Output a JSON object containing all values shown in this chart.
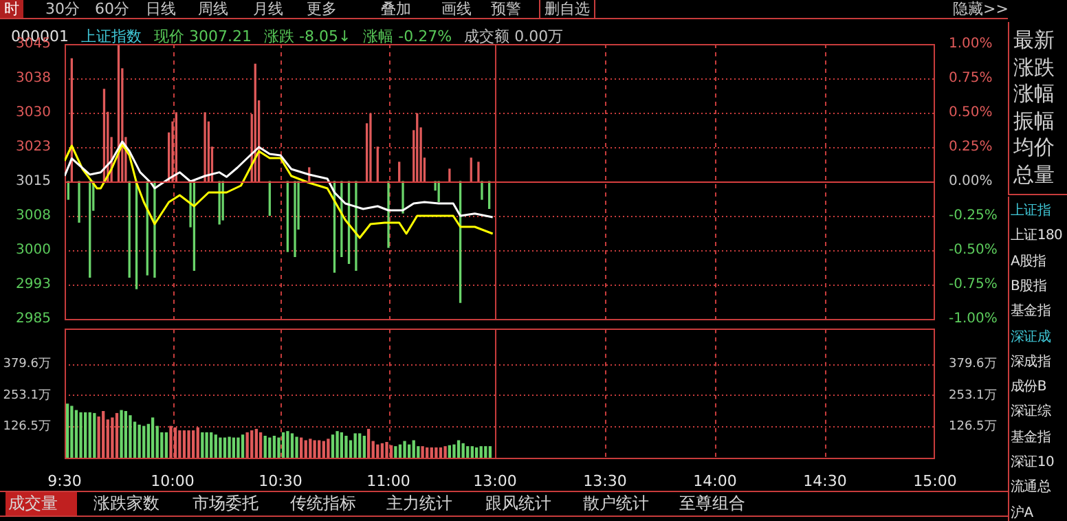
{
  "chart_data": [
    {
      "type": "line",
      "annotations": [
        "000001",
        "上证指数",
        "现价 3007.21",
        "涨跌 -8.05↓",
        "涨幅 -0.27%",
        "成交额 0.00万"
      ],
      "xlim": [
        9.5,
        11.5
      ],
      "xticks": [
        {
          "value": 9.5,
          "label": null
        },
        {
          "value": 10,
          "label": null
        },
        {
          "value": 10.5,
          "label": null
        },
        {
          "value": 11,
          "label": null
        }
      ],
      "ylim": [
        2985,
        3045
      ],
      "yticks": [
        2985,
        {
          "value": 2992.5,
          "label": "2993"
        },
        3000,
        {
          "value": 3007.5,
          "label": "3008"
        },
        3015,
        {
          "value": 3022.5,
          "label": "3023"
        },
        3030,
        {
          "value": 3037.5,
          "label": "3038"
        },
        3045
      ],
      "grid": true,
      "tick_labels": "y",
      "marker": "none",
      "ref_lines": [
        {
          "axis": "y",
          "value": 3015,
          "color": "#d84040"
        }
      ],
      "series": [
        {
          "type": "bar",
          "color": "#e05a5a",
          "x": [
            9.533,
            9.683,
            9.7,
            9.717,
            9.75,
            9.767,
            9.783,
            9.983,
            10,
            10.017,
            10.15,
            10.167,
            10.183,
            10.367,
            10.383,
            10.4,
            10.633,
            10.9,
            10.917,
            10.95,
            11.05,
            11.117,
            11.133,
            11.15,
            11.167,
            11.283,
            11.383,
            11.417
          ],
          "base": [
            3015,
            3015,
            3015,
            3015,
            3015,
            3015,
            3015,
            3015,
            3015,
            3015,
            3015,
            3015,
            3015,
            3015,
            3015,
            3015,
            3015,
            3015,
            3015,
            3015,
            3015,
            3015,
            3015,
            3015,
            3015,
            3015,
            3015,
            3015
          ],
          "values": [
            26.8,
            20.1,
            15.1,
            9.6,
            29.6,
            24.6,
            9.6,
            10.6,
            13,
            15,
            15,
            13,
            7.5,
            14.6,
            25.6,
            17.6,
            3,
            12.6,
            14.8,
            7.5,
            4.2,
            11.1,
            14.8,
            11.7,
            5.1,
            2.7,
            5.1,
            4.2
          ]
        },
        {
          "type": "bar",
          "color": "#6ad46a",
          "x": [
            9.517,
            9.567,
            9.617,
            9.633,
            9.8,
            9.833,
            9.883,
            9.917,
            10.083,
            10.1,
            10.217,
            10.233,
            10.45,
            10.533,
            10.567,
            10.583,
            10.75,
            10.783,
            10.817,
            10.85,
            11,
            11.067,
            11.217,
            11.233,
            11.333,
            11.433,
            11.467
          ],
          "base": [
            3015,
            3015,
            3015,
            3015,
            3015,
            3015,
            3015,
            3015,
            3015,
            3015,
            3015,
            3015,
            3015,
            3015,
            3015,
            3015,
            3015,
            3015,
            3015,
            3015,
            3015,
            3015,
            3015,
            3015,
            3015,
            3015,
            3015
          ],
          "values": [
            -3.9,
            -8.9,
            -20.9,
            -6.3,
            -20.9,
            -23.4,
            -20.4,
            -20.9,
            -9.9,
            -19.4,
            -9.3,
            -8.4,
            -7.4,
            -15.3,
            -16.4,
            -10.4,
            -19.8,
            -16.4,
            -17.9,
            -19.4,
            -14.4,
            -6.9,
            -1.9,
            -4.4,
            -26.4,
            -3.9,
            -5.9
          ]
        },
        {
          "color": "#ffffff",
          "x": [
            9.5,
            9.533,
            9.567,
            9.617,
            9.667,
            9.717,
            9.767,
            9.8,
            9.85,
            9.9,
            9.917,
            9.983,
            10.033,
            10.083,
            10.15,
            10.217,
            10.25,
            10.3,
            10.333,
            10.4,
            10.45,
            10.5,
            10.55,
            10.633,
            10.717,
            10.75,
            10.8,
            10.883,
            10.95,
            11,
            11.067,
            11.117,
            11.167,
            11.233,
            11.3,
            11.333,
            11.4,
            11.483
          ],
          "values": [
            3016.2,
            3020,
            3018.6,
            3016.5,
            3017,
            3019.5,
            3023.7,
            3021.6,
            3017,
            3014.7,
            3013.5,
            3015.6,
            3017,
            3015,
            3016.2,
            3017,
            3016,
            3018,
            3019.5,
            3022.5,
            3021,
            3020.7,
            3017.7,
            3016.5,
            3015.6,
            3012.6,
            3010.2,
            3009,
            3009.6,
            3008.7,
            3008.7,
            3010.2,
            3010.5,
            3010.2,
            3010.2,
            3007.5,
            3008,
            3007.2
          ]
        },
        {
          "color": "#ffff00",
          "x": [
            9.5,
            9.533,
            9.583,
            9.65,
            9.667,
            9.717,
            9.767,
            9.8,
            9.833,
            9.867,
            9.917,
            9.983,
            10.033,
            10.1,
            10.167,
            10.25,
            10.317,
            10.4,
            10.45,
            10.5,
            10.55,
            10.633,
            10.717,
            10.8,
            10.867,
            10.917,
            10.983,
            11.05,
            11.083,
            11.133,
            11.233,
            11.3,
            11.333,
            11.4,
            11.483
          ],
          "values": [
            3019.5,
            3022.8,
            3017.7,
            3013.5,
            3013.5,
            3017.7,
            3023.1,
            3020.7,
            3014.7,
            3010.5,
            3005.7,
            3010.5,
            3012,
            3009.6,
            3012.6,
            3012.6,
            3014.1,
            3021.6,
            3020.1,
            3020.1,
            3016.2,
            3014.7,
            3013.5,
            3006.6,
            3002.7,
            3005.7,
            3006,
            3006,
            3003.6,
            3007.5,
            3007.5,
            3007.5,
            3005.1,
            3005.1,
            3003.6
          ]
        }
      ]
    },
    {
      "type": "line",
      "xlim": [
        13,
        15
      ],
      "xticks": [
        {
          "value": 13,
          "label": null
        },
        {
          "value": 13.5,
          "label": null
        },
        {
          "value": 14,
          "label": null
        },
        {
          "value": 14.5,
          "label": null
        },
        {
          "value": 15,
          "label": null
        }
      ],
      "y2lim": [
        -1,
        1
      ],
      "y2ticks": [
        {
          "value": -1,
          "label": "-1.00%"
        },
        {
          "value": -0.75,
          "label": "-0.75%"
        },
        {
          "value": -0.5,
          "label": "-0.50%"
        },
        {
          "value": -0.25,
          "label": "-0.25%"
        },
        {
          "value": 0,
          "label": "0.00%"
        },
        {
          "value": 0.25,
          "label": "0.25%"
        },
        {
          "value": 0.5,
          "label": "0.50%"
        },
        {
          "value": 0.75,
          "label": "0.75%"
        },
        {
          "value": 1,
          "label": "1.00%"
        }
      ],
      "grid": true,
      "tick_labels": "y",
      "ref_lines": [
        {
          "axis": "y2",
          "value": 0,
          "color": "#d84040"
        }
      ]
    },
    {
      "type": "bar",
      "xlim": [
        9.5,
        11.5
      ],
      "xticks": [
        {
          "value": 9.5,
          "label": "9:30"
        },
        {
          "value": 10,
          "label": "10:00"
        },
        {
          "value": 10.5,
          "label": "10:30"
        },
        {
          "value": 11,
          "label": "11:00"
        }
      ],
      "ylim": [
        0,
        520
      ],
      "yticks": [
        {
          "value": 126.5,
          "label": "126.5万"
        },
        {
          "value": 253.1,
          "label": "253.1万"
        },
        {
          "value": 379.6,
          "label": "379.6万"
        }
      ],
      "grid": true,
      "x": [
        9.513,
        9.533,
        9.554,
        9.575,
        9.596,
        9.617,
        9.638,
        9.658,
        9.679,
        9.7,
        9.721,
        9.742,
        9.763,
        9.783,
        9.804,
        9.825,
        9.846,
        9.867,
        9.888,
        9.908,
        9.929,
        9.95,
        9.971,
        9.992,
        10.013,
        10.033,
        10.054,
        10.075,
        10.096,
        10.117,
        10.138,
        10.158,
        10.179,
        10.2,
        10.221,
        10.242,
        10.263,
        10.283,
        10.304,
        10.325,
        10.346,
        10.367,
        10.388,
        10.408,
        10.429,
        10.45,
        10.471,
        10.492,
        10.513,
        10.533,
        10.554,
        10.575,
        10.596,
        10.617,
        10.638,
        10.658,
        10.679,
        10.7,
        10.721,
        10.742,
        10.763,
        10.783,
        10.804,
        10.825,
        10.846,
        10.867,
        10.888,
        10.908,
        10.929,
        10.95,
        10.971,
        10.992,
        11.013,
        11.033,
        11.054,
        11.075,
        11.096,
        11.117,
        11.138,
        11.158,
        11.179,
        11.2,
        11.221,
        11.242,
        11.263,
        11.283,
        11.304,
        11.325,
        11.346,
        11.367,
        11.388,
        11.408,
        11.429,
        11.45,
        11.471
      ],
      "values": [
        217,
        208,
        191,
        182,
        182,
        182,
        179,
        165,
        187,
        153,
        161,
        179,
        191,
        187,
        170,
        144,
        132,
        127,
        135,
        161,
        127,
        101,
        101,
        127,
        121,
        109,
        109,
        109,
        109,
        121,
        101,
        101,
        101,
        92,
        80,
        80,
        83,
        80,
        80,
        92,
        101,
        109,
        115,
        101,
        87,
        80,
        87,
        80,
        101,
        106,
        97,
        83,
        80,
        69,
        75,
        69,
        69,
        66,
        75,
        92,
        106,
        101,
        87,
        69,
        97,
        97,
        87,
        115,
        66,
        52,
        57,
        62,
        49,
        45,
        52,
        66,
        52,
        69,
        45,
        45,
        40,
        40,
        40,
        40,
        45,
        49,
        52,
        69,
        57,
        45,
        45,
        40,
        45,
        45,
        45
      ],
      "colors": [
        "#6ad46a",
        "#6ad46a",
        "#6ad46a",
        "#6ad46a",
        "#6ad46a",
        "#6ad46a",
        "#6ad46a",
        "#e05a5a",
        "#e05a5a",
        "#e05a5a",
        "#e05a5a",
        "#e05a5a",
        "#6ad46a",
        "#6ad46a",
        "#6ad46a",
        "#6ad46a",
        "#6ad46a",
        "#6ad46a",
        "#6ad46a",
        "#6ad46a",
        "#6ad46a",
        "#6ad46a",
        "#6ad46a",
        "#e05a5a",
        "#e05a5a",
        "#e05a5a",
        "#e05a5a",
        "#e05a5a",
        "#e05a5a",
        "#e05a5a",
        "#6ad46a",
        "#6ad46a",
        "#6ad46a",
        "#6ad46a",
        "#6ad46a",
        "#6ad46a",
        "#6ad46a",
        "#6ad46a",
        "#6ad46a",
        "#6ad46a",
        "#e05a5a",
        "#e05a5a",
        "#e05a5a",
        "#e05a5a",
        "#6ad46a",
        "#6ad46a",
        "#6ad46a",
        "#6ad46a",
        "#6ad46a",
        "#6ad46a",
        "#6ad46a",
        "#6ad46a",
        "#e05a5a",
        "#e05a5a",
        "#e05a5a",
        "#e05a5a",
        "#e05a5a",
        "#e05a5a",
        "#e05a5a",
        "#6ad46a",
        "#6ad46a",
        "#6ad46a",
        "#6ad46a",
        "#6ad46a",
        "#6ad46a",
        "#6ad46a",
        "#6ad46a",
        "#e05a5a",
        "#e05a5a",
        "#e05a5a",
        "#e05a5a",
        "#e05a5a",
        "#e05a5a",
        "#6ad46a",
        "#6ad46a",
        "#6ad46a",
        "#6ad46a",
        "#6ad46a",
        "#6ad46a",
        "#e05a5a",
        "#e05a5a",
        "#e05a5a",
        "#e05a5a",
        "#e05a5a",
        "#e05a5a",
        "#6ad46a",
        "#6ad46a",
        "#6ad46a",
        "#6ad46a",
        "#6ad46a",
        "#6ad46a",
        "#6ad46a",
        "#6ad46a",
        "#6ad46a",
        "#6ad46a"
      ]
    },
    {
      "type": "bar",
      "xlim": [
        13,
        15
      ],
      "xticks": [
        {
          "value": 13,
          "label": "13:00"
        },
        {
          "value": 13.5,
          "label": "13:30"
        },
        {
          "value": 14,
          "label": "14:00"
        },
        {
          "value": 14.5,
          "label": "14:30"
        },
        {
          "value": 15,
          "label": "15:00"
        }
      ],
      "y2lim": [
        0,
        520
      ],
      "y2ticks": [
        {
          "value": 126.5,
          "label": "126.5万"
        },
        {
          "value": 253.1,
          "label": "253.1万"
        },
        {
          "value": 379.6,
          "label": "379.6万"
        }
      ],
      "grid": true
    },
    {
      "type": "other",
      "annotations": [
        "时",
        "30分",
        "60分",
        "日线",
        "周线",
        "月线",
        "更多",
        "叠加",
        "画线",
        "预警",
        "删自选",
        "隐藏>>"
      ]
    },
    {
      "type": "other",
      "annotations": [
        "最新",
        "涨跌",
        "涨幅",
        "振幅",
        "均价",
        "总量"
      ]
    },
    {
      "type": "other",
      "annotations": [
        "上证指",
        "上证180",
        "A股指",
        "B股指",
        "基金指",
        "深证成",
        "深成指",
        "成份B",
        "深证综",
        "基金指",
        "深证10",
        "流通总",
        "沪A"
      ]
    },
    {
      "type": "other",
      "annotations": [
        "成交量",
        "涨跌家数",
        "市场委托",
        "传统指标",
        "主力统计",
        "跟风统计",
        "散户统计",
        "至尊组合"
      ]
    }
  ]
}
